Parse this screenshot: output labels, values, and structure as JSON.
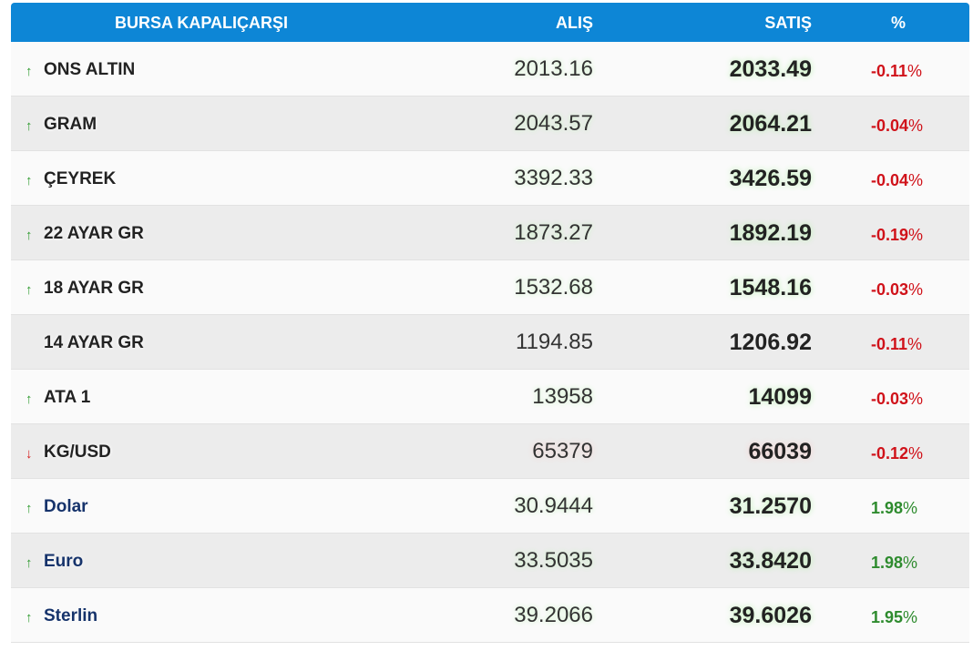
{
  "header": {
    "name": "BURSA KAPALIÇARŞI",
    "buy": "ALIŞ",
    "sell": "SATIŞ",
    "pct": "%"
  },
  "colors": {
    "header_bg": "#0d86d6",
    "up": "#2e9a2e",
    "down": "#d62020",
    "negative_pct": "#d0121a",
    "positive_pct": "#2e8b2e"
  },
  "rows": [
    {
      "arrow": "↑",
      "direction": "up",
      "name": "ONS ALTIN",
      "buy": "2013.16",
      "sell": "2033.49",
      "pct_num": "-0.11",
      "pct_sign": "%"
    },
    {
      "arrow": "↑",
      "direction": "up",
      "name": "GRAM",
      "buy": "2043.57",
      "sell": "2064.21",
      "pct_num": "-0.04",
      "pct_sign": "%"
    },
    {
      "arrow": "↑",
      "direction": "up",
      "name": "ÇEYREK",
      "buy": "3392.33",
      "sell": "3426.59",
      "pct_num": "-0.04",
      "pct_sign": "%"
    },
    {
      "arrow": "↑",
      "direction": "up",
      "name": "22 AYAR GR",
      "buy": "1873.27",
      "sell": "1892.19",
      "pct_num": "-0.19",
      "pct_sign": "%"
    },
    {
      "arrow": "↑",
      "direction": "up",
      "name": "18 AYAR GR",
      "buy": "1532.68",
      "sell": "1548.16",
      "pct_num": "-0.03",
      "pct_sign": "%"
    },
    {
      "arrow": "",
      "direction": "flat",
      "name": "14 AYAR GR",
      "buy": "1194.85",
      "sell": "1206.92",
      "pct_num": "-0.11",
      "pct_sign": "%"
    },
    {
      "arrow": "↑",
      "direction": "up",
      "name": "ATA 1",
      "buy": "13958",
      "sell": "14099",
      "pct_num": "-0.03",
      "pct_sign": "%"
    },
    {
      "arrow": "↓",
      "direction": "down",
      "name": "KG/USD",
      "buy": "65379",
      "sell": "66039",
      "pct_num": "-0.12",
      "pct_sign": "%"
    },
    {
      "arrow": "↑",
      "direction": "up",
      "name": "Dolar",
      "buy": "30.9444",
      "sell": "31.2570",
      "pct_num": "1.98",
      "pct_sign": "%"
    },
    {
      "arrow": "↑",
      "direction": "up",
      "name": "Euro",
      "buy": "33.5035",
      "sell": "33.8420",
      "pct_num": "1.98",
      "pct_sign": "%"
    },
    {
      "arrow": "↑",
      "direction": "up",
      "name": "Sterlin",
      "buy": "39.2066",
      "sell": "39.6026",
      "pct_num": "1.95",
      "pct_sign": "%"
    }
  ]
}
